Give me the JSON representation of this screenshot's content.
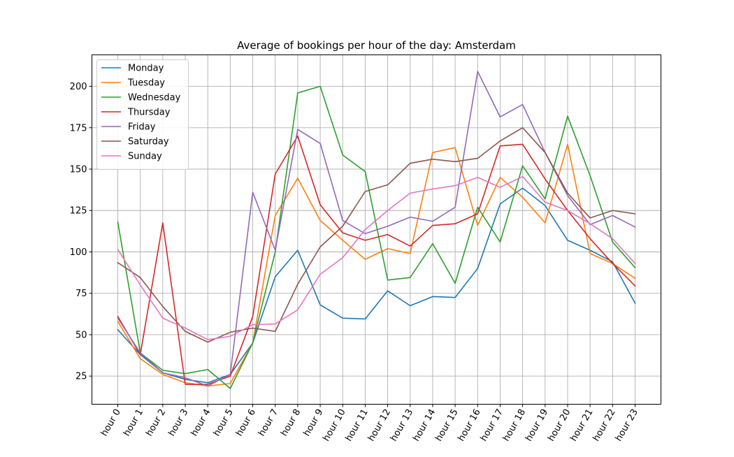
{
  "chart_data": {
    "type": "line",
    "title": "Average of bookings per hour of the day: Amsterdam",
    "xlabel": "",
    "ylabel": "",
    "categories": [
      "hour 0",
      "hour 1",
      "hour 2",
      "hour 3",
      "hour 4",
      "hour 5",
      "hour 6",
      "hour 7",
      "hour 8",
      "hour 9",
      "hour 10",
      "hour 11",
      "hour 12",
      "hour 13",
      "hour 14",
      "hour 15",
      "hour 16",
      "hour 17",
      "hour 18",
      "hour 19",
      "hour 20",
      "hour 21",
      "hour 22",
      "hour 23"
    ],
    "ylim": [
      8,
      219
    ],
    "yticks": [
      25,
      50,
      75,
      100,
      125,
      150,
      175,
      200
    ],
    "grid": true,
    "legend_position": "top-left",
    "series": [
      {
        "name": "Monday",
        "color": "#1f77b4",
        "values": [
          53,
          38,
          27,
          23,
          21,
          26,
          45,
          85,
          101,
          68,
          60,
          59.5,
          76.5,
          67.5,
          73,
          72.5,
          90,
          129,
          138.5,
          128,
          107,
          101,
          94,
          69
        ]
      },
      {
        "name": "Tuesday",
        "color": "#ff7f0e",
        "values": [
          58,
          35.5,
          26,
          21,
          19,
          20.5,
          45,
          122,
          144.5,
          119,
          107,
          95.5,
          102,
          99,
          160,
          163,
          116,
          145,
          133,
          117.5,
          165,
          99,
          93,
          84
        ]
      },
      {
        "name": "Wednesday",
        "color": "#2ca02c",
        "values": [
          118,
          39,
          28.5,
          26.5,
          29,
          17.5,
          45,
          100,
          196,
          200,
          158.5,
          148.5,
          83,
          84.5,
          105,
          81,
          127,
          106,
          152,
          132,
          182,
          146,
          106,
          90.5
        ]
      },
      {
        "name": "Thursday",
        "color": "#d62728",
        "values": [
          61,
          38,
          117.5,
          20,
          20,
          25,
          61,
          147,
          170,
          128.5,
          111.5,
          107,
          110.5,
          103.5,
          116,
          117,
          123,
          164,
          165,
          144,
          125,
          108,
          93,
          79.5
        ]
      },
      {
        "name": "Friday",
        "color": "#9467bd",
        "values": [
          60,
          39,
          27,
          24,
          19,
          26,
          136,
          101,
          174,
          165.5,
          119,
          111,
          115.5,
          121,
          118.5,
          127,
          209,
          181.5,
          189,
          160,
          134,
          116.5,
          122,
          115
        ]
      },
      {
        "name": "Saturday",
        "color": "#8c564b",
        "values": [
          93.5,
          84.5,
          67,
          52,
          45.5,
          51.5,
          54,
          52,
          80.5,
          103,
          115.5,
          136.5,
          140.5,
          153.5,
          156,
          154.5,
          156.5,
          167,
          175,
          160,
          135.5,
          120.5,
          125,
          123
        ]
      },
      {
        "name": "Sunday",
        "color": "#e377c2",
        "values": [
          101.5,
          80,
          60,
          54,
          47,
          49,
          56,
          56.5,
          65,
          86.5,
          96.5,
          113.5,
          125,
          135.5,
          138,
          140,
          145,
          139,
          145.5,
          130,
          125,
          117,
          108,
          93
        ]
      }
    ]
  }
}
